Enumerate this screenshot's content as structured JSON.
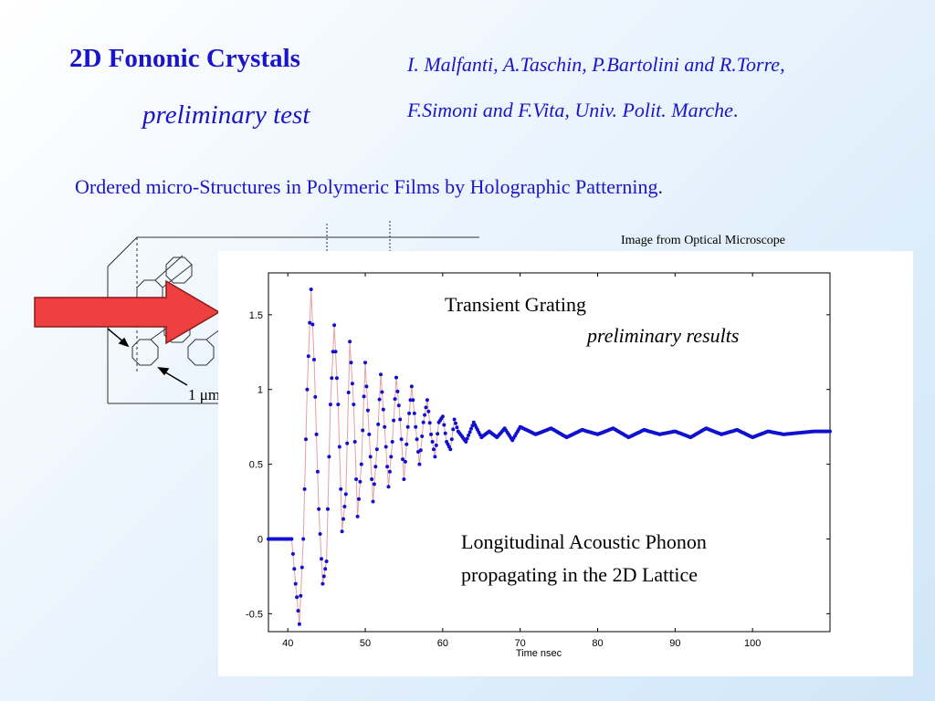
{
  "slide": {
    "title": "2D Fononic Crystals",
    "subtitle": "preliminary test",
    "authors_line1": "I. Malfanti, A.Taschin, P.Bartolini and R.Torre,",
    "authors_line2": "F.Simoni and F.Vita, Univ. Polit. Marche",
    "authors_line2_end": ".",
    "heading": "Ordered micro-Structures in Polymeric Films by Holographic Patterning.",
    "microscope_caption": "Image from Optical Microscope",
    "lattice_scale_label": "1 μm"
  },
  "plot_notes": {
    "title": "Transient Grating",
    "subtitle": "preliminary results",
    "annotation_line1": "Longitudinal Acoustic Phonon",
    "annotation_line2": "propagating in the 2D Lattice"
  },
  "colors": {
    "text_blue": "#1a16c8",
    "data_points": "#1010d0",
    "fit_line": "#e8a0a0",
    "arrow_red": "#ee4040"
  },
  "chart_data": {
    "type": "scatter",
    "xlabel": "Time nsec",
    "ylabel": "",
    "xlim": [
      37.5,
      110
    ],
    "ylim": [
      -0.62,
      1.78
    ],
    "xticks": [
      40,
      50,
      60,
      70,
      80,
      90,
      100
    ],
    "yticks": [
      -0.5,
      0,
      0.5,
      1,
      1.5
    ],
    "xtick_labels": [
      "40",
      "50",
      "60",
      "70",
      "80",
      "90",
      "100"
    ],
    "ytick_labels": [
      "-0.5",
      "0",
      "0.5",
      "1",
      "1.5"
    ],
    "series": [
      {
        "style": "dots",
        "x": [
          37.5,
          38.5,
          39.5,
          40.5,
          41.0,
          41.5,
          42.0,
          42.5,
          43.0,
          43.4,
          44.0,
          44.5,
          45.0,
          45.5,
          46.0,
          46.5,
          47.0,
          47.5,
          48.0,
          48.5,
          49.0,
          49.5,
          50.0,
          50.5,
          51.0,
          51.5,
          52.0,
          52.5,
          53.0,
          53.5,
          54.0,
          54.5,
          55.0,
          55.5,
          56.0,
          56.5,
          57.0,
          57.5,
          58.0,
          58.5,
          59.0,
          59.5,
          60.0,
          60.5,
          61.0,
          61.5,
          62.0,
          63.0,
          64.0,
          65.0,
          66.0,
          67.0,
          68.0,
          69.0,
          70.0,
          72.0,
          74.0,
          76.0,
          78.0,
          80.0,
          82.0,
          84.0,
          86.0,
          88.0,
          90.0,
          92.0,
          94.0,
          96.0,
          98.0,
          100.0,
          102.0,
          104.0,
          106.0,
          108.0,
          110.0
        ],
        "y": [
          0.0,
          0.0,
          0.0,
          0.0,
          -0.3,
          -0.57,
          0.0,
          1.0,
          1.67,
          1.2,
          0.2,
          -0.3,
          -0.15,
          0.9,
          1.43,
          0.9,
          0.05,
          0.3,
          1.32,
          0.9,
          0.15,
          0.5,
          1.18,
          0.7,
          0.25,
          0.6,
          1.1,
          0.75,
          0.35,
          0.65,
          1.08,
          0.8,
          0.4,
          0.75,
          1.02,
          0.75,
          0.5,
          0.78,
          0.93,
          0.7,
          0.55,
          0.78,
          0.82,
          0.65,
          0.6,
          0.8,
          0.72,
          0.65,
          0.78,
          0.68,
          0.72,
          0.68,
          0.74,
          0.66,
          0.75,
          0.7,
          0.74,
          0.68,
          0.73,
          0.7,
          0.74,
          0.68,
          0.73,
          0.7,
          0.72,
          0.68,
          0.74,
          0.7,
          0.73,
          0.68,
          0.72,
          0.7,
          0.71,
          0.72,
          0.72
        ]
      }
    ]
  }
}
